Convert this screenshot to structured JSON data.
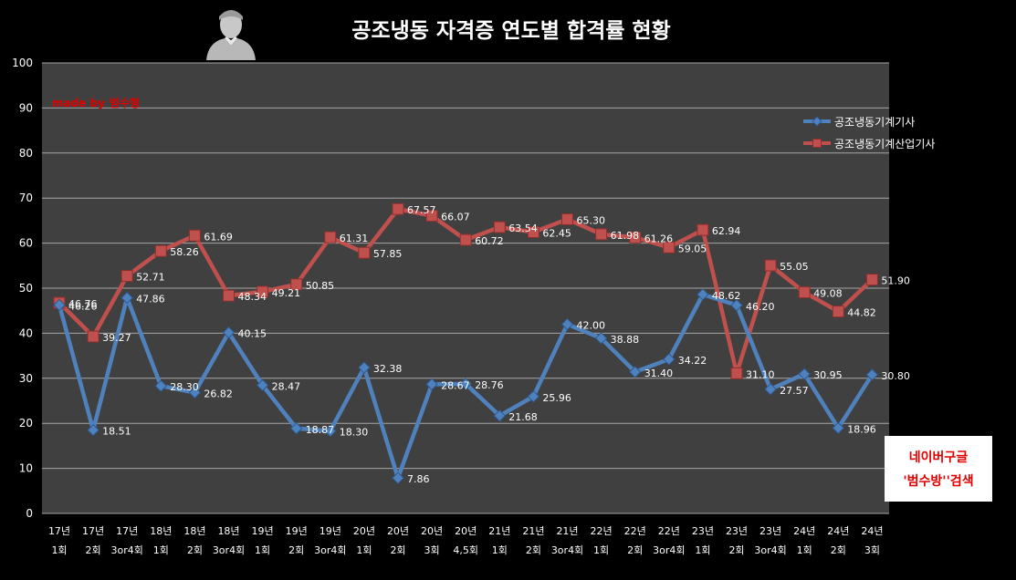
{
  "title": "공조냉동 자격증 연도별 합격률 현황",
  "made_by": {
    "prefix": "made by",
    "name": "범수형"
  },
  "naver_note": {
    "line1": "네이버구글",
    "line2": "'범수방''검색"
  },
  "colors": {
    "background": "#000000",
    "plot_area": "#404040",
    "gridline": "#a6a6a6",
    "series_blue": "#4f81bd",
    "series_red": "#c0504d",
    "accent_red": "#e00000"
  },
  "chart_data": {
    "type": "line",
    "title": "공조냉동 자격증 연도별 합격률 현황",
    "ylim": [
      0,
      100
    ],
    "yticks": [
      0,
      10,
      20,
      30,
      40,
      50,
      60,
      70,
      80,
      90,
      100
    ],
    "grid": true,
    "legend_position": "top-right",
    "categories": [
      [
        "17년",
        "1회"
      ],
      [
        "17년",
        "2회"
      ],
      [
        "17년",
        "3or4회"
      ],
      [
        "18년",
        "1회"
      ],
      [
        "18년",
        "2회"
      ],
      [
        "18년",
        "3or4회"
      ],
      [
        "19년",
        "1회"
      ],
      [
        "19년",
        "2회"
      ],
      [
        "19년",
        "3or4회"
      ],
      [
        "20년",
        "1회"
      ],
      [
        "20년",
        "2회"
      ],
      [
        "20년",
        "3회"
      ],
      [
        "20년",
        "4,5회"
      ],
      [
        "21년",
        "1회"
      ],
      [
        "21년",
        "2회"
      ],
      [
        "21년",
        "3or4회"
      ],
      [
        "22년",
        "1회"
      ],
      [
        "22년",
        "2회"
      ],
      [
        "22년",
        "3or4회"
      ],
      [
        "23년",
        "1회"
      ],
      [
        "23년",
        "2회"
      ],
      [
        "23년",
        "3or4회"
      ],
      [
        "24년",
        "1회"
      ],
      [
        "24년",
        "2회"
      ],
      [
        "24년",
        "3회"
      ]
    ],
    "series": [
      {
        "name": "공조냉동기계기사",
        "color": "#4f81bd",
        "marker": "diamond",
        "values": [
          46.26,
          18.51,
          47.86,
          28.3,
          26.82,
          40.15,
          28.47,
          18.87,
          18.3,
          32.38,
          7.86,
          28.67,
          28.76,
          21.68,
          25.96,
          42.0,
          38.88,
          31.4,
          34.22,
          48.62,
          46.2,
          27.57,
          30.95,
          18.96,
          30.8
        ]
      },
      {
        "name": "공조냉동기계산업기사",
        "color": "#c0504d",
        "marker": "square",
        "values": [
          46.76,
          39.27,
          52.71,
          58.26,
          61.69,
          48.34,
          49.21,
          50.85,
          61.31,
          57.85,
          67.57,
          66.07,
          60.72,
          63.54,
          62.45,
          65.3,
          61.98,
          61.26,
          59.05,
          62.94,
          31.1,
          55.05,
          49.08,
          44.82,
          51.9
        ]
      }
    ]
  }
}
